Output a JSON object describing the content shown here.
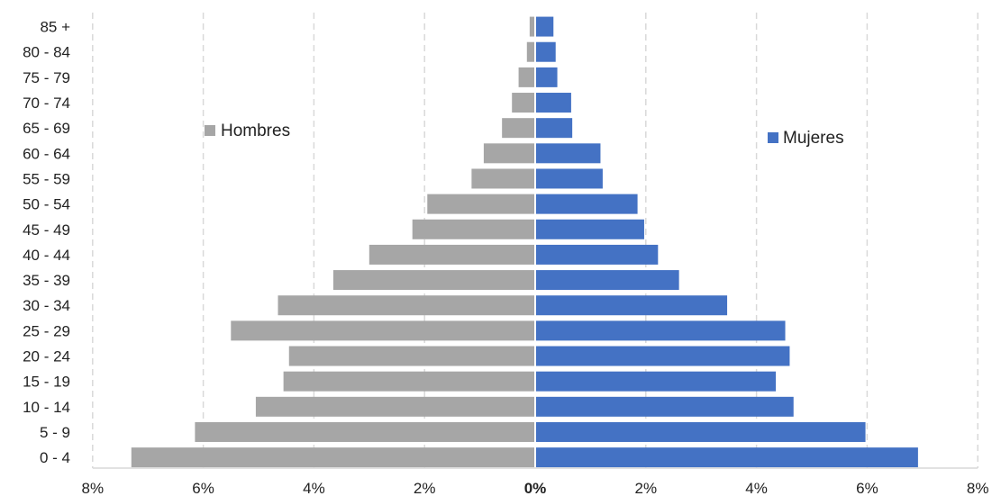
{
  "chart_data": {
    "type": "bar",
    "orientation": "horizontal",
    "layout": "population-pyramid",
    "categories": [
      "0 - 4",
      "5 - 9",
      "10 - 14",
      "15 - 19",
      "20 - 24",
      "25 - 29",
      "30 - 34",
      "35 - 39",
      "40 - 44",
      "45 - 49",
      "50 - 54",
      "55 - 59",
      "60 - 64",
      "65 - 69",
      "70 - 74",
      "75 - 79",
      "80 - 84",
      "85 +"
    ],
    "series": [
      {
        "name": "Hombres",
        "side": "left",
        "color": "#a6a6a6",
        "values": [
          7.3,
          6.15,
          5.05,
          4.55,
          4.45,
          5.5,
          4.65,
          3.65,
          3.0,
          2.22,
          1.95,
          1.15,
          0.93,
          0.6,
          0.42,
          0.3,
          0.15,
          0.1
        ]
      },
      {
        "name": "Mujeres",
        "side": "right",
        "color": "#4472c4",
        "values": [
          6.92,
          5.97,
          4.67,
          4.35,
          4.6,
          4.52,
          3.47,
          2.6,
          2.22,
          1.97,
          1.85,
          1.22,
          1.18,
          0.67,
          0.65,
          0.4,
          0.37,
          0.33
        ]
      }
    ],
    "x_ticks": [
      "8%",
      "6%",
      "4%",
      "2%",
      "0%",
      "2%",
      "4%",
      "6%",
      "8%"
    ],
    "xlim": [
      -8,
      8
    ],
    "grid": "vertical dashed",
    "legend": "inside: Hombres upper-left, Mujeres upper-right"
  }
}
